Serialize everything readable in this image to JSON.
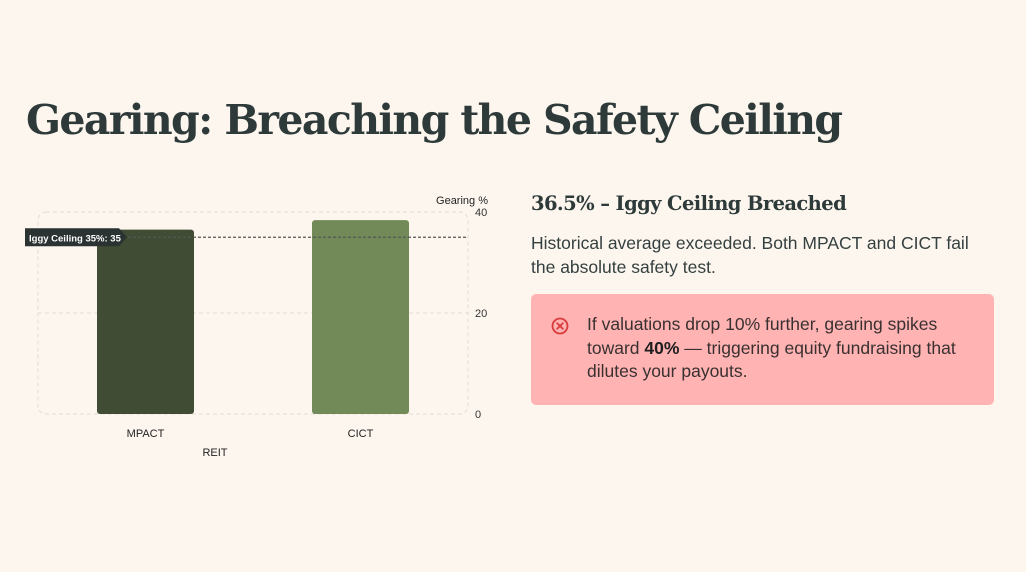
{
  "page": {
    "title": "Gearing: Breaching the Safety Ceiling"
  },
  "chart_data": {
    "type": "bar",
    "categories": [
      "MPACT",
      "CICT"
    ],
    "values": [
      36.5,
      38.4
    ],
    "colors": [
      "#404c33",
      "#728958"
    ],
    "xlabel": "REIT",
    "ylabel": "Gearing %",
    "ylim": [
      0,
      40
    ],
    "yticks": [
      0,
      20,
      40
    ],
    "grid": true,
    "reference_line": {
      "value": 35,
      "label": "Iggy Ceiling 35%: 35"
    }
  },
  "panel": {
    "subtitle": "36.5% – Iggy Ceiling Breached",
    "description": "Historical average exceeded. Both MPACT and CICT fail the absolute safety test.",
    "alert": {
      "icon": "x-circle-icon",
      "color": "#d83a3a",
      "text_before": "If valuations drop 10% further, gearing spikes toward ",
      "emphasis": "40%",
      "text_after": " — triggering equity fundraising that dilutes your payouts."
    }
  }
}
